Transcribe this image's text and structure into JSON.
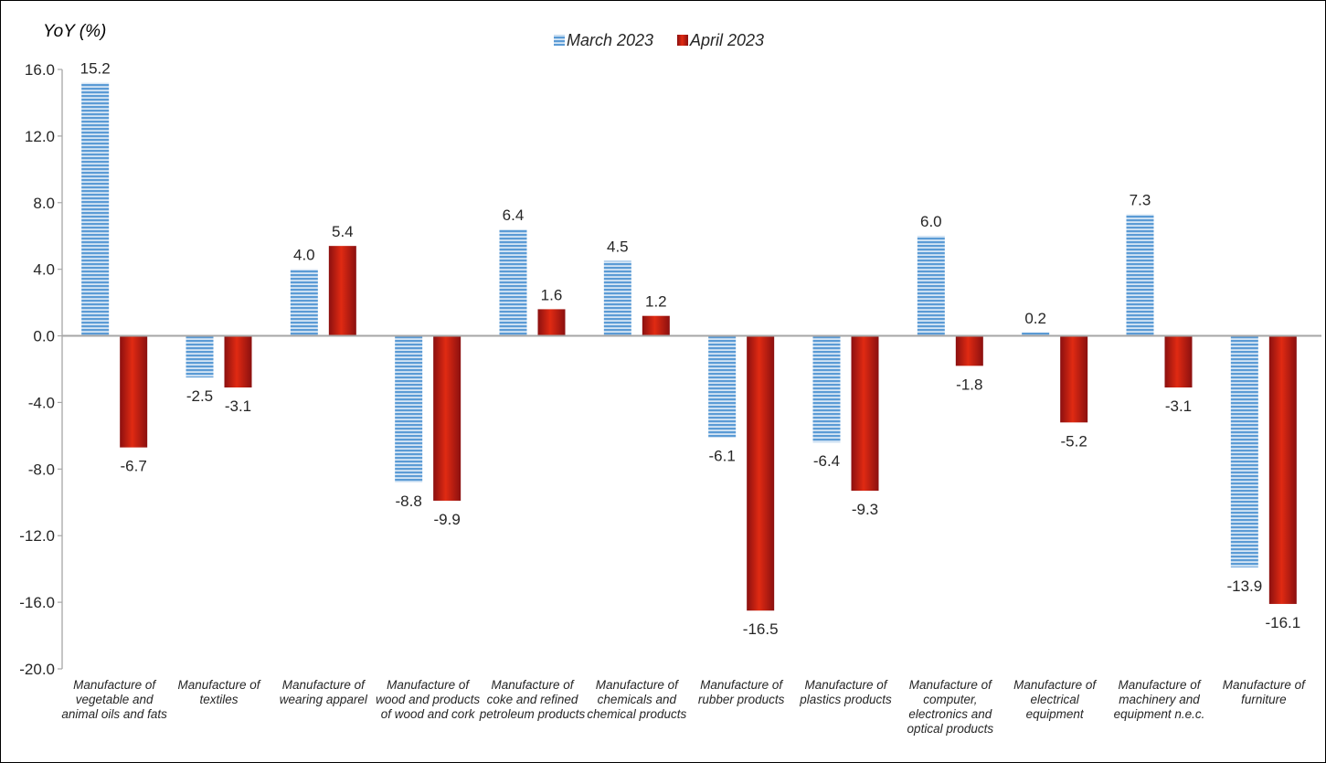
{
  "chart_data": {
    "type": "bar",
    "ylabel": "YoY (%)",
    "ylim": [
      -20,
      16
    ],
    "yticks": [
      "16.0",
      "12.0",
      "8.0",
      "4.0",
      "0.0",
      "-4.0",
      "-8.0",
      "-12.0",
      "-16.0",
      "-20.0"
    ],
    "ytick_values": [
      16,
      12,
      8,
      4,
      0,
      -4,
      -8,
      -12,
      -16,
      -20
    ],
    "legend_position": "top-center",
    "grid": false,
    "categories": [
      "Manufacture of vegetable and animal oils and fats",
      "Manufacture of textiles",
      "Manufacture of wearing apparel",
      "Manufacture of wood and products of wood and cork",
      "Manufacture of coke and refined petroleum products",
      "Manufacture of chemicals and chemical products",
      "Manufacture of rubber products",
      "Manufacture of plastics products",
      "Manufacture of computer, electronics and optical products",
      "Manufacture of electrical equipment",
      "Manufacture of machinery and equipment n.e.c.",
      "Manufacture of furniture"
    ],
    "series": [
      {
        "name": "March 2023",
        "color": "#5b9bd5",
        "values": [
          15.2,
          -2.5,
          4.0,
          -8.8,
          6.4,
          4.5,
          -6.1,
          -6.4,
          6.0,
          0.2,
          7.3,
          -13.9
        ],
        "labels": [
          "15.2",
          "-2.5",
          "4.0",
          "-8.8",
          "6.4",
          "4.5",
          "-6.1",
          "-6.4",
          "6.0",
          "0.2",
          "7.3",
          "-13.9"
        ]
      },
      {
        "name": "April 2023",
        "color": "#c00000",
        "values": [
          -6.7,
          -3.1,
          5.4,
          -9.9,
          1.6,
          1.2,
          -16.5,
          -9.3,
          -1.8,
          -5.2,
          -3.1,
          -16.1
        ],
        "labels": [
          "-6.7",
          "-3.1",
          "5.4",
          "-9.9",
          "1.6",
          "1.2",
          "-16.5",
          "-9.3",
          "-1.8",
          "-5.2",
          "-3.1",
          "-16.1"
        ]
      }
    ]
  }
}
